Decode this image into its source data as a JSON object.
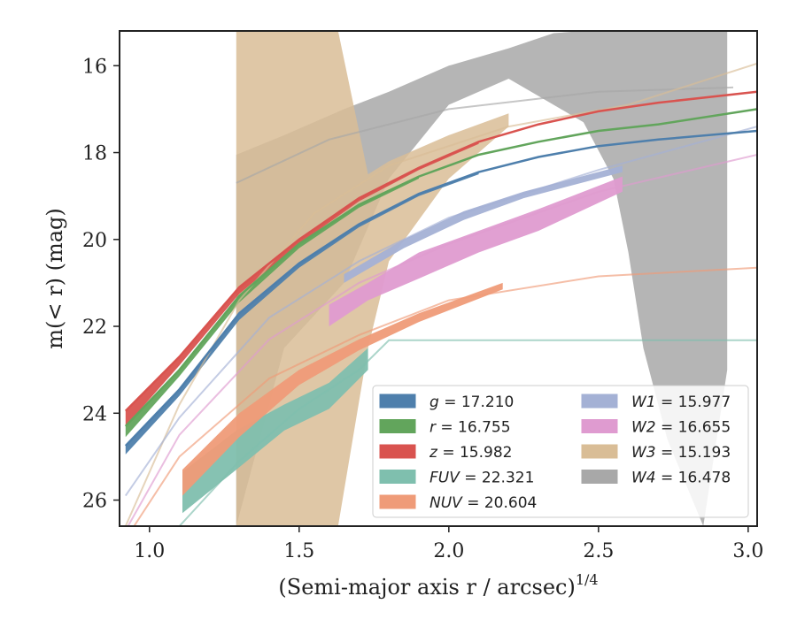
{
  "chart_data": {
    "type": "line",
    "xlabel": "(Semi-major axis r / arcsec)",
    "xlabel_exponent": "1/4",
    "ylabel": "m(< r) (mag)",
    "xlim": [
      0.9,
      3.03
    ],
    "ylim": [
      26.6,
      15.2
    ],
    "y_inverted": true,
    "xticks": [
      1.0,
      1.5,
      2.0,
      2.5,
      3.0
    ],
    "xtick_labels": [
      "1.0",
      "1.5",
      "2.0",
      "2.5",
      "3.0"
    ],
    "yticks": [
      16,
      18,
      20,
      22,
      24,
      26
    ],
    "ytick_labels": [
      "16",
      "18",
      "20",
      "22",
      "24",
      "26"
    ],
    "grid": false,
    "legend_position": "lower-right",
    "legend_ncol": 2,
    "series": [
      {
        "key": "W4",
        "name": "W4 = 16.478",
        "color": "#a8a8a8",
        "thin": [
          [
            1.29,
            18.7
          ],
          [
            1.6,
            17.7
          ],
          [
            2.0,
            17.0
          ],
          [
            2.5,
            16.6
          ],
          [
            2.95,
            16.5
          ]
        ],
        "band": [
          [
            1.29,
            18.05,
            26.6
          ],
          [
            1.45,
            17.6,
            22.5
          ],
          [
            1.65,
            17.0,
            21.0
          ],
          [
            1.8,
            16.6,
            18.6
          ],
          [
            2.0,
            16.0,
            16.9
          ],
          [
            2.2,
            15.6,
            16.3
          ],
          [
            2.35,
            15.25,
            16.9
          ],
          [
            2.45,
            15.2,
            17.3
          ],
          [
            2.55,
            15.2,
            18.6
          ],
          [
            2.6,
            15.2,
            20.3
          ],
          [
            2.65,
            15.2,
            22.5
          ],
          [
            2.73,
            15.2,
            24.6
          ],
          [
            2.85,
            15.2,
            26.6
          ],
          [
            2.93,
            15.2,
            23.0
          ]
        ]
      },
      {
        "key": "W3",
        "name": "W3 = 15.193",
        "color": "#d9bd96",
        "thin": [
          [
            0.92,
            26.6
          ],
          [
            1.1,
            23.8
          ],
          [
            1.3,
            21.4
          ],
          [
            1.55,
            19.4
          ],
          [
            1.8,
            18.3
          ],
          [
            2.2,
            17.4
          ],
          [
            2.6,
            16.9
          ],
          [
            3.03,
            15.95
          ]
        ],
        "band": [
          [
            1.29,
            15.2,
            26.6
          ],
          [
            1.5,
            15.2,
            26.6
          ],
          [
            1.63,
            15.2,
            26.6
          ],
          [
            1.73,
            18.5,
            22.5
          ],
          [
            1.8,
            18.2,
            20.5
          ],
          [
            2.0,
            17.6,
            18.6
          ],
          [
            2.2,
            17.1,
            17.4
          ]
        ]
      },
      {
        "key": "FUV",
        "name": "FUV = 22.321",
        "color": "#7fbfae",
        "thin": [
          [
            1.1,
            26.6
          ],
          [
            1.3,
            25.1
          ],
          [
            1.5,
            23.9
          ],
          [
            1.7,
            23.0
          ],
          [
            1.8,
            22.32
          ],
          [
            2.2,
            22.32
          ],
          [
            3.03,
            22.32
          ]
        ],
        "band": [
          [
            1.11,
            25.35,
            26.3
          ],
          [
            1.29,
            24.4,
            25.3
          ],
          [
            1.45,
            23.8,
            24.4
          ],
          [
            1.6,
            23.3,
            23.9
          ],
          [
            1.73,
            22.5,
            23.0
          ]
        ]
      },
      {
        "key": "NUV",
        "name": "NUV = 20.604",
        "color": "#ef9b78",
        "thin": [
          [
            0.92,
            26.9
          ],
          [
            1.1,
            25.0
          ],
          [
            1.4,
            23.2
          ],
          [
            1.7,
            22.2
          ],
          [
            2.0,
            21.4
          ],
          [
            2.5,
            20.85
          ],
          [
            3.03,
            20.65
          ]
        ],
        "band": [
          [
            1.11,
            25.3,
            25.9
          ],
          [
            1.3,
            24.0,
            24.55
          ],
          [
            1.5,
            23.0,
            23.35
          ],
          [
            1.7,
            22.3,
            22.55
          ],
          [
            1.9,
            21.7,
            21.9
          ],
          [
            2.18,
            21.0,
            21.15
          ]
        ]
      },
      {
        "key": "W2",
        "name": "W2 = 16.655",
        "color": "#df9bd0",
        "thin": [
          [
            0.92,
            26.7
          ],
          [
            1.1,
            24.5
          ],
          [
            1.4,
            22.3
          ],
          [
            1.7,
            21.0
          ],
          [
            2.0,
            20.1
          ],
          [
            2.5,
            18.9
          ],
          [
            3.03,
            18.05
          ]
        ],
        "band": [
          [
            1.6,
            21.5,
            22.0
          ],
          [
            1.73,
            21.0,
            21.4
          ],
          [
            1.9,
            20.3,
            20.9
          ],
          [
            2.1,
            19.8,
            20.3
          ],
          [
            2.3,
            19.3,
            19.8
          ],
          [
            2.58,
            18.55,
            18.9
          ]
        ]
      },
      {
        "key": "W1",
        "name": "W1 = 15.977",
        "color": "#a4b1d5",
        "thin": [
          [
            0.92,
            25.9
          ],
          [
            1.1,
            24.1
          ],
          [
            1.4,
            21.8
          ],
          [
            1.7,
            20.5
          ],
          [
            2.0,
            19.5
          ],
          [
            2.5,
            18.4
          ],
          [
            3.03,
            17.4
          ]
        ],
        "band": [
          [
            1.65,
            20.8,
            21.0
          ],
          [
            1.85,
            20.0,
            20.2
          ],
          [
            2.05,
            19.35,
            19.55
          ],
          [
            2.25,
            18.9,
            19.05
          ],
          [
            2.58,
            18.3,
            18.45
          ]
        ]
      },
      {
        "key": "g",
        "name": "g = 17.210",
        "color": "#4e7fac",
        "thin": [
          [
            0.92,
            24.75
          ],
          [
            1.1,
            23.45
          ],
          [
            1.3,
            21.7
          ],
          [
            1.5,
            20.55
          ],
          [
            1.7,
            19.65
          ],
          [
            1.9,
            18.95
          ],
          [
            2.1,
            18.45
          ],
          [
            2.3,
            18.1
          ],
          [
            2.5,
            17.85
          ],
          [
            2.7,
            17.7
          ],
          [
            3.03,
            17.5
          ]
        ],
        "band": [
          [
            0.92,
            24.75,
            24.95
          ],
          [
            1.1,
            23.45,
            23.6
          ],
          [
            1.3,
            21.7,
            21.85
          ],
          [
            1.5,
            20.55,
            20.65
          ],
          [
            1.7,
            19.65,
            19.72
          ],
          [
            1.9,
            18.95,
            19.0
          ],
          [
            2.1,
            18.45,
            18.5
          ]
        ]
      },
      {
        "key": "r",
        "name": "r = 16.755",
        "color": "#62a55c",
        "thin": [
          [
            0.92,
            24.3
          ],
          [
            1.1,
            23.0
          ],
          [
            1.3,
            21.3
          ],
          [
            1.5,
            20.1
          ],
          [
            1.7,
            19.2
          ],
          [
            1.9,
            18.55
          ],
          [
            2.1,
            18.05
          ],
          [
            2.3,
            17.75
          ],
          [
            2.5,
            17.5
          ],
          [
            2.7,
            17.35
          ],
          [
            3.03,
            17.0
          ]
        ],
        "band": [
          [
            0.92,
            24.3,
            24.55
          ],
          [
            1.1,
            23.0,
            23.15
          ],
          [
            1.3,
            21.3,
            21.45
          ],
          [
            1.5,
            20.1,
            20.2
          ],
          [
            1.7,
            19.2,
            19.27
          ],
          [
            1.9,
            18.55,
            18.6
          ]
        ]
      },
      {
        "key": "z",
        "name": "z = 15.982",
        "color": "#d9534f",
        "thin": [
          [
            0.92,
            23.95
          ],
          [
            1.1,
            22.7
          ],
          [
            1.3,
            21.1
          ],
          [
            1.5,
            20.0
          ],
          [
            1.7,
            19.05
          ],
          [
            1.9,
            18.35
          ],
          [
            2.1,
            17.75
          ],
          [
            2.3,
            17.35
          ],
          [
            2.5,
            17.05
          ],
          [
            2.7,
            16.85
          ],
          [
            3.03,
            16.6
          ]
        ],
        "band": [
          [
            0.92,
            23.95,
            24.3
          ],
          [
            1.1,
            22.7,
            22.9
          ],
          [
            1.3,
            21.1,
            21.25
          ],
          [
            1.5,
            20.0,
            20.1
          ],
          [
            1.7,
            19.05,
            19.12
          ],
          [
            1.9,
            18.35,
            18.4
          ],
          [
            2.1,
            17.75,
            17.8
          ]
        ]
      }
    ],
    "legend": [
      {
        "symbol": "g",
        "value": "17.210",
        "color": "#4e7fac"
      },
      {
        "symbol": "r",
        "value": "16.755",
        "color": "#62a55c"
      },
      {
        "symbol": "z",
        "value": "15.982",
        "color": "#d9534f"
      },
      {
        "symbol": "FUV",
        "value": "22.321",
        "color": "#7fbfae"
      },
      {
        "symbol": "NUV",
        "value": "20.604",
        "color": "#ef9b78"
      },
      {
        "symbol": "W1",
        "value": "15.977",
        "color": "#a4b1d5"
      },
      {
        "symbol": "W2",
        "value": "16.655",
        "color": "#df9bd0"
      },
      {
        "symbol": "W3",
        "value": "15.193",
        "color": "#d9bd96"
      },
      {
        "symbol": "W4",
        "value": "16.478",
        "color": "#a8a8a8"
      }
    ]
  }
}
